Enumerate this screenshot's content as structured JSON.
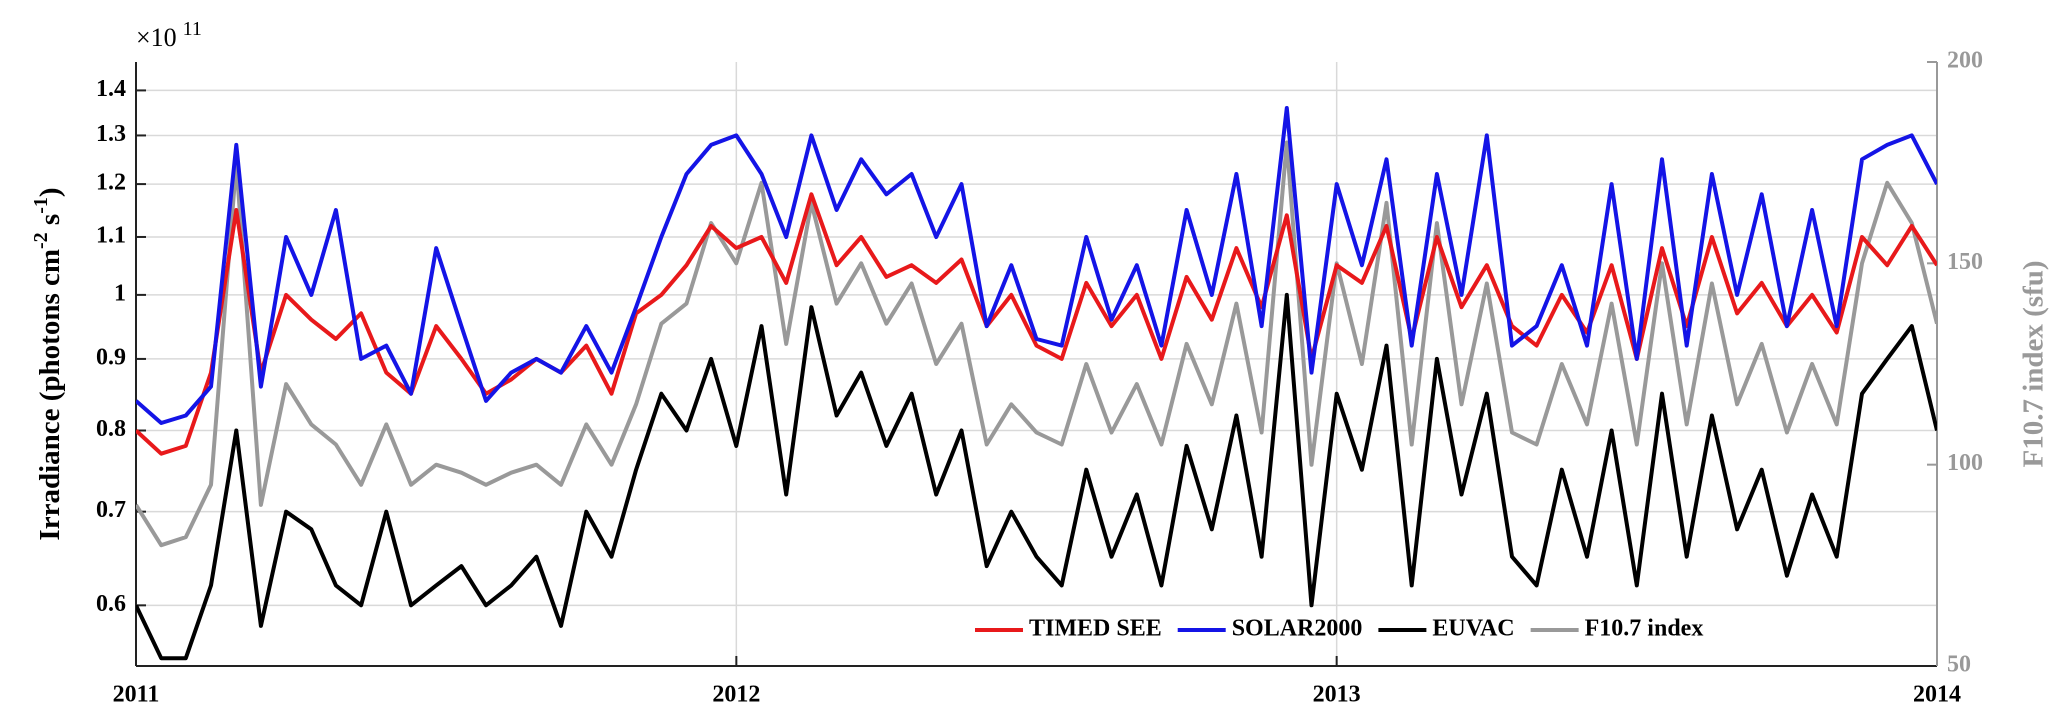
{
  "chart_data": {
    "type": "line",
    "y_exponent_base": "×10",
    "y_exponent_power": "11",
    "ylabel_parts": [
      "Irradiance  (photons  cm",
      "-2",
      " s",
      "-1",
      ")"
    ],
    "y2label": "F10.7 index (sfu)",
    "ylog": true,
    "grid": true,
    "legend": "lower right",
    "xlim": [
      2011,
      2014
    ],
    "xticks": [
      2011,
      2012,
      2013,
      2014
    ],
    "ylim": [
      0.543,
      1.467
    ],
    "yticks": [
      0.6,
      0.7,
      0.8,
      0.9,
      1,
      1.1,
      1.2,
      1.3,
      1.4
    ],
    "y2lim": [
      50,
      200
    ],
    "y2ticks": [
      50,
      100,
      150,
      200
    ],
    "y2color": "#999999",
    "x": [
      2011,
      2011.042,
      2011.083,
      2011.125,
      2011.167,
      2011.208,
      2011.25,
      2011.292,
      2011.333,
      2011.375,
      2011.417,
      2011.458,
      2011.5,
      2011.542,
      2011.583,
      2011.625,
      2011.667,
      2011.708,
      2011.75,
      2011.792,
      2011.833,
      2011.875,
      2011.917,
      2011.958,
      2012,
      2012.042,
      2012.083,
      2012.125,
      2012.167,
      2012.208,
      2012.25,
      2012.292,
      2012.333,
      2012.375,
      2012.417,
      2012.458,
      2012.5,
      2012.542,
      2012.583,
      2012.625,
      2012.667,
      2012.708,
      2012.75,
      2012.792,
      2012.833,
      2012.875,
      2012.917,
      2012.958,
      2013,
      2013.042,
      2013.083,
      2013.125,
      2013.167,
      2013.208,
      2013.25,
      2013.292,
      2013.333,
      2013.375,
      2013.417,
      2013.458,
      2013.5,
      2013.542,
      2013.583,
      2013.625,
      2013.667,
      2013.708,
      2013.75,
      2013.792,
      2013.833,
      2013.875,
      2013.917,
      2013.958,
      2014
    ],
    "series": [
      {
        "name": "TIMED SEE",
        "color": "#e8191b",
        "values": [
          0.8,
          0.77,
          0.78,
          0.88,
          1.15,
          0.88,
          1.0,
          0.96,
          0.93,
          0.97,
          0.88,
          0.85,
          0.95,
          0.9,
          0.85,
          0.87,
          0.9,
          0.88,
          0.92,
          0.85,
          0.97,
          1.0,
          1.05,
          1.12,
          1.08,
          1.1,
          1.02,
          1.18,
          1.05,
          1.1,
          1.03,
          1.05,
          1.02,
          1.06,
          0.95,
          1.0,
          0.92,
          0.9,
          1.02,
          0.95,
          1.0,
          0.9,
          1.03,
          0.96,
          1.08,
          0.98,
          1.14,
          0.9,
          1.05,
          1.02,
          1.12,
          0.93,
          1.1,
          0.98,
          1.05,
          0.95,
          0.92,
          1.0,
          0.94,
          1.05,
          0.9,
          1.08,
          0.95,
          1.1,
          0.97,
          1.02,
          0.95,
          1.0,
          0.94,
          1.1,
          1.05,
          1.12,
          1.05
        ]
      },
      {
        "name": "SOLAR2000",
        "color": "#1414e6",
        "values": [
          0.84,
          0.81,
          0.82,
          0.86,
          1.28,
          0.86,
          1.1,
          1.0,
          1.15,
          0.9,
          0.92,
          0.85,
          1.08,
          0.95,
          0.84,
          0.88,
          0.9,
          0.88,
          0.95,
          0.88,
          0.98,
          1.1,
          1.22,
          1.28,
          1.3,
          1.22,
          1.1,
          1.3,
          1.15,
          1.25,
          1.18,
          1.22,
          1.1,
          1.2,
          0.95,
          1.05,
          0.93,
          0.92,
          1.1,
          0.96,
          1.05,
          0.92,
          1.15,
          1.0,
          1.22,
          0.95,
          1.36,
          0.88,
          1.2,
          1.05,
          1.25,
          0.92,
          1.22,
          1.0,
          1.3,
          0.92,
          0.95,
          1.05,
          0.92,
          1.2,
          0.9,
          1.25,
          0.92,
          1.22,
          1.0,
          1.18,
          0.95,
          1.15,
          0.95,
          1.25,
          1.28,
          1.3,
          1.2
        ]
      },
      {
        "name": "EUVAC",
        "color": "#000000",
        "values": [
          0.6,
          0.55,
          0.55,
          0.62,
          0.8,
          0.58,
          0.7,
          0.68,
          0.62,
          0.6,
          0.7,
          0.6,
          0.62,
          0.64,
          0.6,
          0.62,
          0.65,
          0.58,
          0.7,
          0.65,
          0.75,
          0.85,
          0.8,
          0.9,
          0.78,
          0.95,
          0.72,
          0.98,
          0.82,
          0.88,
          0.78,
          0.85,
          0.72,
          0.8,
          0.64,
          0.7,
          0.65,
          0.62,
          0.75,
          0.65,
          0.72,
          0.62,
          0.78,
          0.68,
          0.82,
          0.65,
          1.0,
          0.6,
          0.85,
          0.75,
          0.92,
          0.62,
          0.9,
          0.72,
          0.85,
          0.65,
          0.62,
          0.75,
          0.65,
          0.8,
          0.62,
          0.85,
          0.65,
          0.82,
          0.68,
          0.75,
          0.63,
          0.72,
          0.65,
          0.85,
          0.9,
          0.95,
          0.8
        ]
      },
      {
        "name": "F10.7 index",
        "color": "#999999",
        "axis": "y2",
        "values": [
          90,
          80,
          82,
          95,
          175,
          90,
          120,
          110,
          105,
          95,
          110,
          95,
          100,
          98,
          95,
          98,
          100,
          95,
          110,
          100,
          115,
          135,
          140,
          160,
          150,
          170,
          130,
          165,
          140,
          150,
          135,
          145,
          125,
          135,
          105,
          115,
          108,
          105,
          125,
          108,
          120,
          105,
          130,
          115,
          140,
          108,
          180,
          100,
          150,
          125,
          165,
          105,
          160,
          115,
          145,
          108,
          105,
          125,
          110,
          140,
          105,
          150,
          110,
          145,
          115,
          130,
          108,
          125,
          110,
          150,
          170,
          160,
          135
        ]
      }
    ]
  }
}
